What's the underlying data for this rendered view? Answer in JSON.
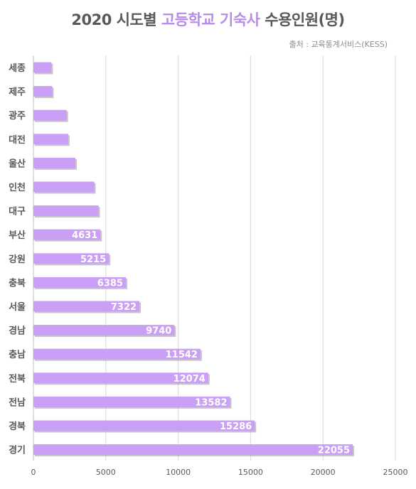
{
  "title": {
    "part1": "2020 시도별 ",
    "part2": "고등학교 기숙사",
    "part3": " 수용인원(명)"
  },
  "source": "출처 : 교육통계서비스(KESS)",
  "colors": {
    "bar": "#c9a0f5",
    "bar_shadow": "#9a9a9a",
    "grid": "#d9d9d9",
    "title_highlight": "#b58ce6",
    "text": "#595959"
  },
  "chart_data": {
    "type": "bar",
    "orientation": "horizontal",
    "title": "2020 시도별 고등학교 기숙사 수용인원(명)",
    "categories": [
      "세종",
      "제주",
      "광주",
      "대전",
      "울산",
      "인천",
      "대구",
      "부산",
      "강원",
      "충북",
      "서울",
      "경남",
      "충남",
      "전북",
      "전남",
      "경북",
      "경기"
    ],
    "values": [
      1250,
      1300,
      2300,
      2400,
      2900,
      4200,
      4500,
      4631,
      5215,
      6385,
      7322,
      9740,
      11542,
      12074,
      13582,
      15286,
      22055
    ],
    "labels": [
      "",
      "",
      "",
      "",
      "",
      "",
      "",
      "4631",
      "5215",
      "6385",
      "7322",
      "9740",
      "11542",
      "12074",
      "13582",
      "15286",
      "22055"
    ],
    "xlim": [
      0,
      25000
    ],
    "xticks": [
      "0",
      "5000",
      "10000",
      "15000",
      "20000",
      "25000"
    ],
    "grid": true,
    "xlabel": "",
    "ylabel": ""
  }
}
